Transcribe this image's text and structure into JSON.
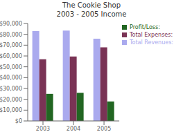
{
  "chart_data": {
    "type": "bar",
    "title": "The Cookie Shop\n2003 - 2005 Income",
    "categories": [
      "2003",
      "2004",
      "2005"
    ],
    "series": [
      {
        "name": "Total Revenues:",
        "color": "#aaaaee",
        "values": [
          83000,
          83500,
          76000
        ]
      },
      {
        "name": "Total Expenses:",
        "color": "#7a3355",
        "values": [
          57000,
          59500,
          68000
        ]
      },
      {
        "name": "Profit/Loss:",
        "color": "#226622",
        "values": [
          25000,
          26000,
          18000
        ]
      }
    ],
    "ylim": [
      0,
      90000
    ],
    "yticks": [
      {
        "value": 0,
        "label": "$0"
      },
      {
        "value": 10000,
        "label": "$10,000"
      },
      {
        "value": 20000,
        "label": "$20,000"
      },
      {
        "value": 30000,
        "label": "$30,000"
      },
      {
        "value": 40000,
        "label": "$40,000"
      },
      {
        "value": 50000,
        "label": "$50,000"
      },
      {
        "value": 60000,
        "label": "$60,000"
      },
      {
        "value": 70000,
        "label": "$70,000"
      },
      {
        "value": 80000,
        "label": "$80,000"
      },
      {
        "value": 90000,
        "label": "$90,000"
      }
    ],
    "legend": "upper right",
    "grid": false
  }
}
